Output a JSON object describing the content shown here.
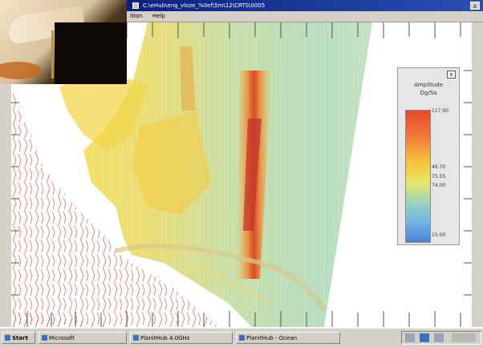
{
  "window": {
    "title": "C:\\eHub\\eng_vloze_%0ef\\5m\\12\\CRTS\\0005",
    "close_label": "x"
  },
  "menu": {
    "items": [
      "ition",
      "Help"
    ]
  },
  "legend": {
    "title_line1": "Amplitude",
    "title_line2": "Dg/Sa",
    "close_label": "x",
    "ticks": [
      "117.00",
      "46.70",
      "75.55",
      "74.00",
      "15.00"
    ]
  },
  "taskbar": {
    "start_label": "Start",
    "buttons": [
      "Microsoft",
      "PlanitHub 4.0GHz",
      "PlanitHub - Ocean"
    ],
    "tray_icons": [
      "tray-icon-1",
      "tray-icon-2",
      "tray-icon-3"
    ]
  },
  "colors": {
    "titlebar_start": "#00106b",
    "titlebar_end": "#2a4fb0",
    "heat_high": "#e6492a",
    "heat_mid": "#f6c63b",
    "heat_low": "#4d7fd2",
    "track_red": "#d8463e"
  }
}
